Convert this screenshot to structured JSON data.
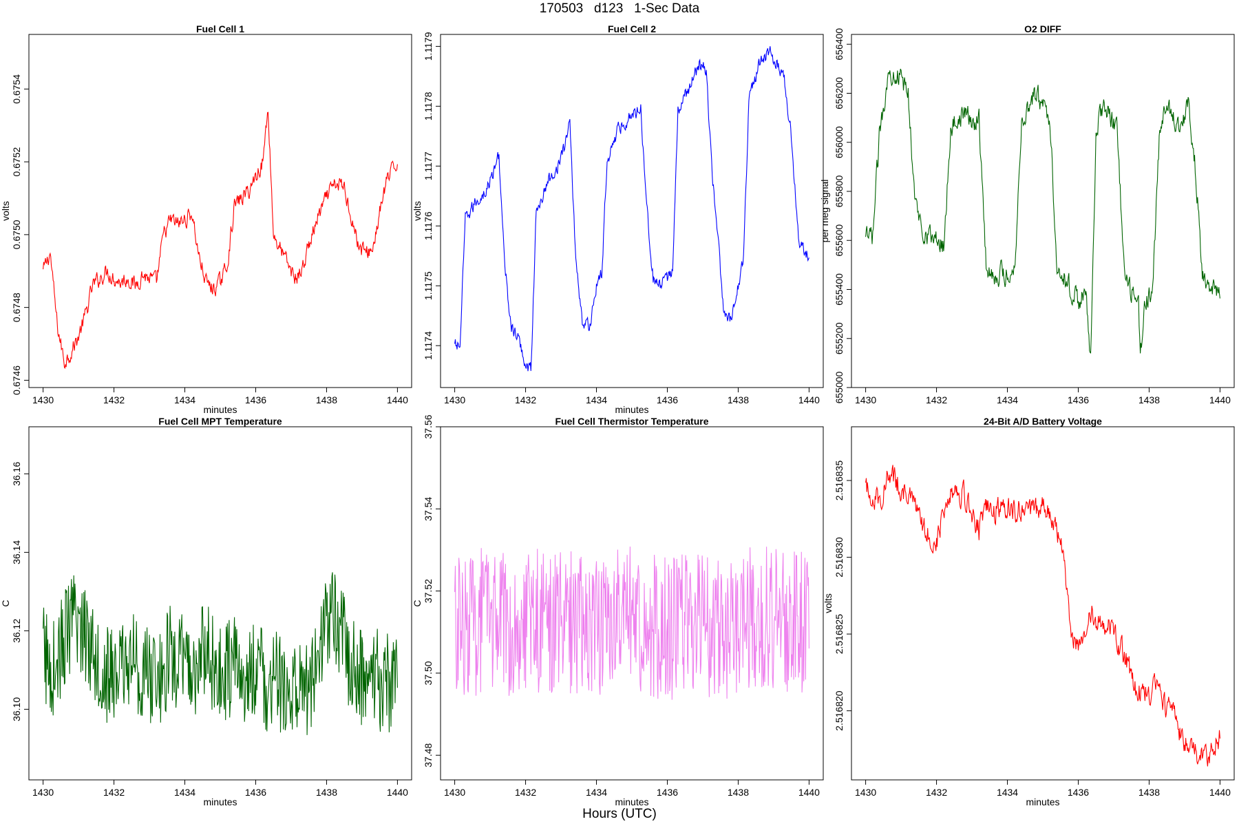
{
  "page": {
    "title": "170503   d123   1-Sec Data",
    "bottom_label": "Hours (UTC)"
  },
  "chart_data": [
    {
      "type": "line",
      "title": "Fuel Cell 1",
      "xlabel": "minutes",
      "ylabel": "volts",
      "color": "#ff0000",
      "xlim": [
        1429.6,
        1440.4
      ],
      "ylim": [
        0.67458,
        0.67555
      ],
      "xticks": [
        "1430",
        "1432",
        "1434",
        "1436",
        "1438",
        "1440"
      ],
      "yticks": [
        "0.6746",
        "0.6748",
        "0.6750",
        "0.6752",
        "0.6754"
      ],
      "x": [
        1430.0,
        1430.2,
        1430.4,
        1430.6,
        1430.8,
        1431.0,
        1431.2,
        1431.4,
        1431.6,
        1431.8,
        1432.0,
        1432.2,
        1432.4,
        1432.6,
        1432.8,
        1433.0,
        1433.2,
        1433.4,
        1433.6,
        1433.8,
        1434.0,
        1434.2,
        1434.4,
        1434.6,
        1434.8,
        1435.0,
        1435.2,
        1435.4,
        1435.6,
        1435.8,
        1436.0,
        1436.2,
        1436.35,
        1436.5,
        1436.7,
        1436.9,
        1437.1,
        1437.3,
        1437.5,
        1437.7,
        1437.9,
        1438.1,
        1438.3,
        1438.5,
        1438.7,
        1438.9,
        1439.1,
        1439.3,
        1439.5,
        1439.7,
        1439.9,
        1440.0
      ],
      "values": [
        0.6749,
        0.67495,
        0.67475,
        0.67465,
        0.67468,
        0.67472,
        0.67478,
        0.67486,
        0.67488,
        0.6749,
        0.67488,
        0.67487,
        0.67488,
        0.67486,
        0.67489,
        0.67488,
        0.67487,
        0.675,
        0.67504,
        0.67503,
        0.67504,
        0.67506,
        0.67494,
        0.67487,
        0.67485,
        0.67487,
        0.67492,
        0.67508,
        0.6751,
        0.67512,
        0.67516,
        0.6752,
        0.67535,
        0.675,
        0.67496,
        0.67492,
        0.67488,
        0.6749,
        0.67497,
        0.67503,
        0.67508,
        0.67512,
        0.67514,
        0.67513,
        0.67505,
        0.67497,
        0.67495,
        0.67496,
        0.67506,
        0.67515,
        0.67518,
        0.6752
      ]
    },
    {
      "type": "line",
      "title": "Fuel Cell 2",
      "xlabel": "minutes",
      "ylabel": "volts",
      "color": "#0000ff",
      "xlim": [
        1429.6,
        1440.4
      ],
      "ylim": [
        1.11733,
        1.11792
      ],
      "xticks": [
        "1430",
        "1432",
        "1434",
        "1436",
        "1438",
        "1440"
      ],
      "yticks": [
        "1.1174",
        "1.1175",
        "1.1176",
        "1.1177",
        "1.1178",
        "1.1179"
      ],
      "x": [
        1430.0,
        1430.15,
        1430.3,
        1430.6,
        1430.9,
        1431.1,
        1431.25,
        1431.4,
        1431.6,
        1431.8,
        1432.0,
        1432.15,
        1432.3,
        1432.6,
        1432.9,
        1433.1,
        1433.25,
        1433.4,
        1433.6,
        1433.8,
        1434.0,
        1434.15,
        1434.3,
        1434.6,
        1434.9,
        1435.1,
        1435.25,
        1435.4,
        1435.6,
        1435.8,
        1436.0,
        1436.15,
        1436.3,
        1436.6,
        1436.9,
        1437.1,
        1437.25,
        1437.4,
        1437.6,
        1437.8,
        1438.0,
        1438.15,
        1438.3,
        1438.6,
        1438.9,
        1439.1,
        1439.3,
        1439.5,
        1439.7,
        1439.9,
        1440.0
      ],
      "values": [
        1.1174,
        1.1174,
        1.11761,
        1.11764,
        1.11766,
        1.11769,
        1.11772,
        1.11754,
        1.11743,
        1.11741,
        1.11737,
        1.11736,
        1.11762,
        1.11767,
        1.1177,
        1.11773,
        1.11778,
        1.11756,
        1.11744,
        1.11743,
        1.1175,
        1.11752,
        1.11771,
        1.11776,
        1.11778,
        1.11779,
        1.1178,
        1.11765,
        1.11751,
        1.1175,
        1.11751,
        1.11753,
        1.11779,
        1.11783,
        1.11787,
        1.11786,
        1.1177,
        1.1176,
        1.11745,
        1.11744,
        1.1175,
        1.11755,
        1.11781,
        1.11787,
        1.11789,
        1.11787,
        1.11785,
        1.11775,
        1.11758,
        1.11755,
        1.11755
      ]
    },
    {
      "type": "line",
      "title": "O2 DIFF",
      "xlabel": "",
      "ylabel": "per meg signal",
      "color": "#006400",
      "xlim": [
        1429.6,
        1440.4
      ],
      "ylim": [
        655000,
        656440
      ],
      "xticks": [
        "1430",
        "1432",
        "1434",
        "1436",
        "1438",
        "1440"
      ],
      "yticks": [
        "655000",
        "655200",
        "655400",
        "655600",
        "655800",
        "656000",
        "656200",
        "656400"
      ],
      "x": [
        1430.0,
        1430.2,
        1430.4,
        1430.6,
        1430.8,
        1431.0,
        1431.2,
        1431.4,
        1431.6,
        1431.8,
        1432.0,
        1432.2,
        1432.4,
        1432.6,
        1432.8,
        1433.0,
        1433.2,
        1433.4,
        1433.6,
        1433.8,
        1434.0,
        1434.2,
        1434.4,
        1434.6,
        1434.8,
        1435.0,
        1435.2,
        1435.4,
        1435.6,
        1435.8,
        1436.0,
        1436.2,
        1436.35,
        1436.5,
        1436.7,
        1436.9,
        1437.1,
        1437.3,
        1437.5,
        1437.7,
        1437.75,
        1437.9,
        1438.1,
        1438.3,
        1438.5,
        1438.7,
        1438.9,
        1439.1,
        1439.3,
        1439.5,
        1439.7,
        1439.9,
        1440.0
      ],
      "values": [
        655600,
        655620,
        656050,
        656250,
        656300,
        656250,
        656200,
        655750,
        655650,
        655620,
        655600,
        655580,
        656050,
        656100,
        656120,
        656080,
        656100,
        655500,
        655450,
        655470,
        655460,
        655480,
        656080,
        656150,
        656200,
        656150,
        656100,
        655500,
        655450,
        655400,
        655350,
        655400,
        655100,
        656050,
        656150,
        656100,
        656050,
        655450,
        655380,
        655350,
        655120,
        655360,
        655400,
        656050,
        656150,
        656100,
        656080,
        656150,
        655900,
        655480,
        655400,
        655380,
        655360
      ]
    },
    {
      "type": "line",
      "title": "Fuel Cell MPT Temperature",
      "xlabel": "minutes",
      "ylabel": "C",
      "color": "#006400",
      "xlim": [
        1429.6,
        1440.4
      ],
      "ylim": [
        36.082,
        36.172
      ],
      "xticks": [
        "1430",
        "1432",
        "1434",
        "1436",
        "1438",
        "1440"
      ],
      "yticks": [
        "36.10",
        "36.12",
        "36.14",
        "36.16"
      ],
      "x": [
        1430.0,
        1430.2,
        1430.4,
        1430.6,
        1430.8,
        1431.0,
        1431.2,
        1431.4,
        1431.6,
        1431.8,
        1432.0,
        1432.2,
        1432.4,
        1432.6,
        1432.8,
        1433.0,
        1433.2,
        1433.4,
        1433.6,
        1433.8,
        1434.0,
        1434.2,
        1434.4,
        1434.6,
        1434.8,
        1435.0,
        1435.2,
        1435.4,
        1435.6,
        1435.8,
        1436.0,
        1436.2,
        1436.4,
        1436.6,
        1436.8,
        1437.0,
        1437.2,
        1437.4,
        1437.6,
        1437.8,
        1438.0,
        1438.2,
        1438.4,
        1438.6,
        1438.8,
        1439.0,
        1439.2,
        1439.4,
        1439.6,
        1439.8,
        1440.0
      ],
      "values": [
        36.115,
        36.11,
        36.112,
        36.118,
        36.121,
        36.122,
        36.119,
        36.117,
        36.111,
        36.109,
        36.108,
        36.11,
        36.113,
        36.112,
        36.109,
        36.108,
        36.107,
        36.11,
        36.114,
        36.111,
        36.112,
        36.109,
        36.112,
        36.115,
        36.111,
        36.108,
        36.11,
        36.112,
        36.108,
        36.107,
        36.112,
        36.108,
        36.105,
        36.107,
        36.104,
        36.106,
        36.103,
        36.105,
        36.108,
        36.116,
        36.122,
        36.125,
        36.121,
        36.113,
        36.11,
        36.108,
        36.107,
        36.108,
        36.106,
        36.107,
        36.109
      ]
    },
    {
      "type": "line",
      "title": "Fuel Cell Thermistor Temperature",
      "xlabel": "minutes",
      "ylabel": "C",
      "color": "#ee82ee",
      "xlim": [
        1429.6,
        1440.4
      ],
      "ylim": [
        37.474,
        37.56
      ],
      "xticks": [
        "1430",
        "1432",
        "1434",
        "1436",
        "1438",
        "1440"
      ],
      "yticks": [
        "37.48",
        "37.50",
        "37.52",
        "37.54",
        "37.56"
      ],
      "x": [
        1430.0,
        1430.5,
        1431.0,
        1431.5,
        1432.0,
        1432.5,
        1433.0,
        1433.5,
        1434.0,
        1434.5,
        1435.0,
        1435.5,
        1436.0,
        1436.5,
        1437.0,
        1437.5,
        1438.0,
        1438.5,
        1439.0,
        1439.5,
        1440.0
      ],
      "values": [
        37.511,
        37.512,
        37.513,
        37.512,
        37.514,
        37.513,
        37.512,
        37.513,
        37.512,
        37.512,
        37.513,
        37.512,
        37.511,
        37.512,
        37.512,
        37.511,
        37.512,
        37.513,
        37.513,
        37.512,
        37.513
      ]
    },
    {
      "type": "line",
      "title": "24-Bit A/D Battery Voltage",
      "xlabel": "minutes",
      "ylabel": "volts",
      "color": "#ff0000",
      "xlim": [
        1429.6,
        1440.4
      ],
      "ylim": [
        2.5168155,
        2.5168385
      ],
      "xticks": [
        "1430",
        "1432",
        "1434",
        "1436",
        "1438",
        "1440"
      ],
      "yticks": [
        "2.516820",
        "2.516825",
        "2.516830",
        "2.516835"
      ],
      "x": [
        1430.0,
        1430.2,
        1430.4,
        1430.6,
        1430.8,
        1431.0,
        1431.2,
        1431.4,
        1431.6,
        1431.8,
        1432.0,
        1432.2,
        1432.4,
        1432.6,
        1432.8,
        1433.0,
        1433.2,
        1433.4,
        1433.6,
        1433.8,
        1434.0,
        1434.2,
        1434.4,
        1434.6,
        1434.8,
        1435.0,
        1435.2,
        1435.4,
        1435.6,
        1435.8,
        1436.0,
        1436.2,
        1436.4,
        1436.6,
        1436.8,
        1437.0,
        1437.2,
        1437.4,
        1437.6,
        1437.8,
        1438.0,
        1438.2,
        1438.4,
        1438.6,
        1438.8,
        1439.0,
        1439.2,
        1439.4,
        1439.6,
        1439.8,
        1440.0
      ],
      "values": [
        2.5168345,
        2.516834,
        2.5168338,
        2.516835,
        2.5168352,
        2.5168345,
        2.516834,
        2.5168333,
        2.516832,
        2.5168315,
        2.516831,
        2.516833,
        2.5168345,
        2.5168343,
        2.516834,
        2.516833,
        2.5168318,
        2.5168332,
        2.516833,
        2.5168332,
        2.5168334,
        2.516833,
        2.5168332,
        2.5168328,
        2.5168331,
        2.5168334,
        2.516833,
        2.5168315,
        2.51683,
        2.516825,
        2.5168245,
        2.5168252,
        2.5168262,
        2.5168258,
        2.5168255,
        2.516825,
        2.5168242,
        2.516823,
        2.5168215,
        2.516821,
        2.5168212,
        2.5168215,
        2.5168205,
        2.51682,
        2.516819,
        2.516818,
        2.5168175,
        2.5168172,
        2.516817,
        2.5168175,
        2.5168183
      ]
    }
  ]
}
